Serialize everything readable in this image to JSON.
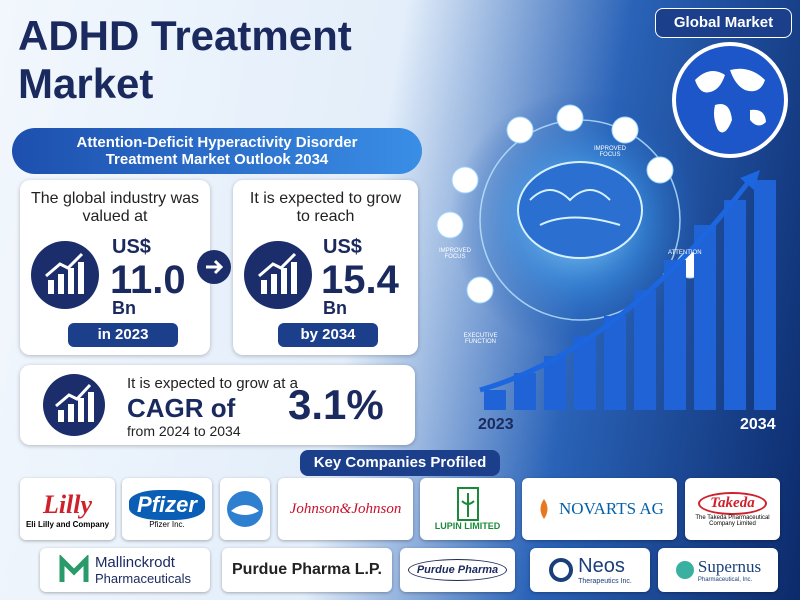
{
  "header": {
    "title_line1": "ADHD Treatment",
    "title_line2": "Market",
    "subtitle": "Attention-Deficit Hyperactivity Disorder Treatment Market Outlook 2034",
    "badge": "Global Market"
  },
  "cards": [
    {
      "intro": "The global industry was valued at",
      "currency": "US$",
      "amount": "11.0",
      "unit": "Bn",
      "period": "in 2023"
    },
    {
      "intro": "It is expected to grow to reach",
      "currency": "US$",
      "amount": "15.4",
      "unit": "Bn",
      "period": "by 2034"
    }
  ],
  "cagr": {
    "intro": "It is expected to grow at a",
    "label": "CAGR of",
    "period": "from 2024 to 2034",
    "value": "3.1%"
  },
  "illustration": {
    "labels": [
      "IMPROVED FOCUS",
      "IMPROVED FOCUS",
      "EXECUTIVE FUNCTION",
      "ATTENTION"
    ],
    "start_year": "2023",
    "end_year": "2034"
  },
  "companies": {
    "heading": "Key Companies Profiled",
    "logos": [
      {
        "mark": "Lilly",
        "name": "Eli Lilly and Company"
      },
      {
        "mark": "Pfizer",
        "name": "Pfizer Inc."
      },
      {
        "mark": "Johnson&Johnson"
      },
      {
        "mark": "LUPIN LIMITED"
      },
      {
        "mark": "NOVARTS AG"
      },
      {
        "mark": "Takeda",
        "name": "The Takeda Pharmaceutical Company Limited"
      },
      {
        "mark": "Mallinckrodt",
        "name": "Pharmaceuticals"
      },
      {
        "mark": "Purdue Pharma L.P."
      },
      {
        "mark": "Purdue Pharma"
      },
      {
        "mark": "Neos",
        "name": "Therapeutics Inc."
      },
      {
        "mark": "Supernus",
        "name": "Pharmaceutical, Inc."
      }
    ]
  }
}
